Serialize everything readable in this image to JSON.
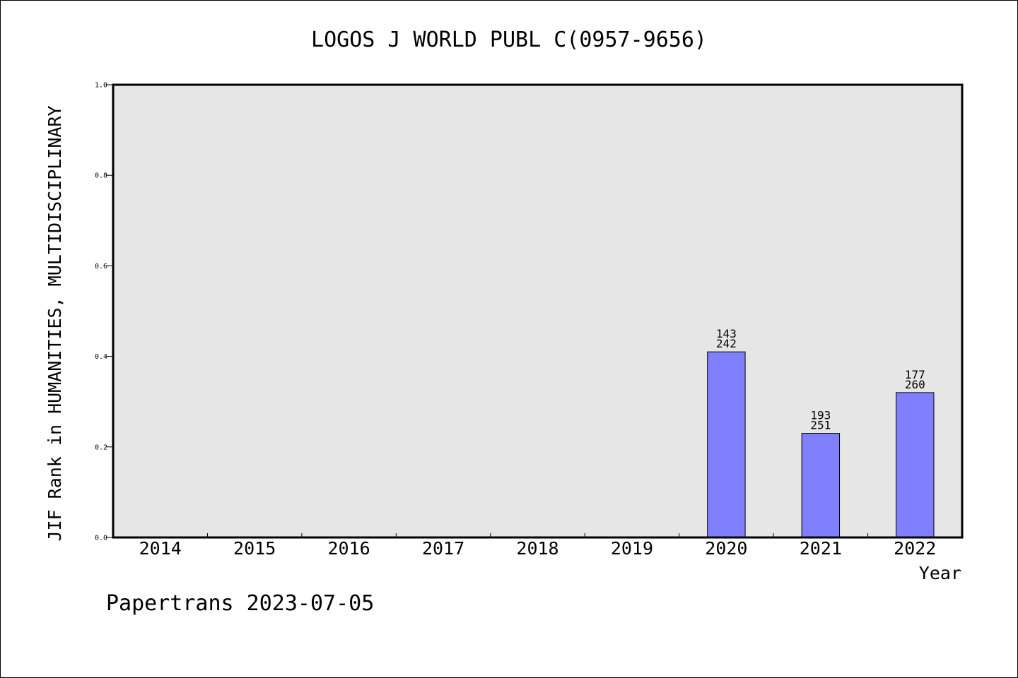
{
  "chart_data": {
    "type": "bar",
    "title": "LOGOS J WORLD PUBL C(0957-9656)",
    "xlabel": "Year",
    "ylabel": "JIF Rank in HUMANITIES, MULTIDISCIPLINARY",
    "footer": "Papertrans 2023-07-05",
    "categories": [
      "2014",
      "2015",
      "2016",
      "2017",
      "2018",
      "2019",
      "2020",
      "2021",
      "2022"
    ],
    "values": [
      null,
      null,
      null,
      null,
      null,
      null,
      0.41,
      0.23,
      0.32
    ],
    "bar_labels": [
      null,
      null,
      null,
      null,
      null,
      null,
      [
        "143",
        "242"
      ],
      [
        "193",
        "251"
      ],
      [
        "177",
        "260"
      ]
    ],
    "ylim": [
      0,
      1.0
    ],
    "yticks": [
      "0.0",
      "0.2",
      "0.4",
      "0.6",
      "0.8",
      "1.0"
    ],
    "grid": false,
    "colors": {
      "plot_background": "#e6e6e6",
      "bar_fill": "#8080ff",
      "bar_stroke": "#000000"
    }
  }
}
